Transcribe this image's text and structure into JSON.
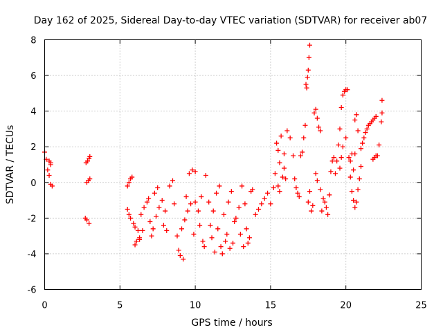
{
  "chart_data": {
    "type": "scatter",
    "title": "Day 162 of 2025, Sidereal Day-to-day VTEC variation (SDTVAR) for receiver ab07",
    "xlabel": "GPS time / hours",
    "ylabel": "SDTVAR / TECUs",
    "xlim": [
      0,
      25
    ],
    "ylim": [
      -6,
      8
    ],
    "xticks": [
      0,
      5,
      10,
      15,
      20,
      25
    ],
    "yticks": [
      -6,
      -4,
      -2,
      0,
      2,
      4,
      6,
      8
    ],
    "xtick_labels": [
      "0",
      "5",
      "10",
      "15",
      "20",
      "25"
    ],
    "ytick_labels": [
      "-6",
      "-4",
      "-2",
      "0",
      "2",
      "4",
      "6",
      "8"
    ],
    "grid": true,
    "marker": "plus",
    "color": "#ff0000",
    "series": [
      {
        "x": [
          0.0,
          0.1,
          0.2,
          0.3,
          0.4,
          0.3,
          0.4,
          0.5,
          0.4
        ],
        "y": [
          1.7,
          1.3,
          0.7,
          1.2,
          1.1,
          0.4,
          -0.1,
          -0.2,
          1.0
        ]
      },
      {
        "x": [
          2.75,
          2.85,
          2.95,
          3.0,
          2.8,
          2.9,
          3.0,
          2.7,
          2.8,
          2.95
        ],
        "y": [
          1.1,
          1.2,
          1.35,
          1.45,
          0.0,
          0.1,
          0.2,
          -2.0,
          -2.1,
          -2.3
        ]
      },
      {
        "x": [
          5.5,
          5.6,
          5.7,
          5.8,
          5.5,
          5.6,
          5.7,
          5.9,
          6.0,
          6.2,
          6.3,
          6.0,
          6.1,
          6.3,
          6.5,
          6.4,
          6.6,
          6.8,
          6.9,
          7.0,
          7.2,
          7.1,
          7.3,
          7.5,
          7.4,
          7.6,
          7.8,
          8.0,
          7.9,
          8.1,
          8.3,
          8.5,
          8.6,
          8.8,
          8.9,
          9.0,
          9.2,
          9.1,
          9.3,
          9.5,
          9.4,
          9.6,
          9.8,
          10.0,
          9.7,
          9.9
        ],
        "y": [
          -0.2,
          0.0,
          0.2,
          0.3,
          -1.5,
          -1.8,
          -2.0,
          -2.3,
          -2.5,
          -2.7,
          -3.2,
          -3.5,
          -3.3,
          -3.1,
          -2.7,
          -1.8,
          -1.4,
          -1.1,
          -0.9,
          -2.2,
          -2.6,
          -3.0,
          -0.6,
          -0.3,
          -1.9,
          -1.4,
          -1.0,
          -1.6,
          -2.4,
          -2.7,
          -0.2,
          0.1,
          -1.2,
          -3.0,
          -3.8,
          -4.1,
          -4.3,
          -2.6,
          -2.1,
          -1.6,
          -0.8,
          0.5,
          0.7,
          0.6,
          -1.2,
          -2.9
        ]
      },
      {
        "x": [
          10.0,
          10.2,
          10.3,
          10.5,
          10.6,
          10.4,
          10.7,
          10.9,
          11.0,
          11.1,
          11.3,
          11.2,
          11.4,
          11.6,
          11.5,
          11.7,
          11.8,
          12.0,
          11.9,
          12.1,
          12.3,
          12.2,
          12.4,
          12.6,
          12.5,
          12.7,
          12.9,
          13.0,
          13.2,
          13.1,
          13.3,
          13.5,
          13.6,
          13.4,
          13.8,
          13.7,
          14.0,
          14.2,
          14.4,
          14.6,
          14.8
        ],
        "y": [
          -1.1,
          -1.6,
          -2.4,
          -3.3,
          -3.6,
          -0.8,
          0.4,
          -1.1,
          -2.4,
          -3.1,
          -3.9,
          -1.6,
          -0.6,
          -0.2,
          -2.6,
          -3.6,
          -4.0,
          -3.3,
          -1.8,
          -2.9,
          -3.7,
          -1.1,
          -0.5,
          -2.2,
          -3.4,
          -2.0,
          -1.4,
          -2.9,
          -3.6,
          -0.2,
          -1.2,
          -3.4,
          -3.1,
          -2.6,
          -0.4,
          -0.5,
          -1.8,
          -1.5,
          -1.2,
          -0.9,
          -0.6
        ]
      },
      {
        "x": [
          15.0,
          15.2,
          15.3,
          15.5,
          15.4,
          15.6,
          15.8,
          15.7,
          15.9,
          16.0,
          15.5,
          15.6,
          15.9,
          16.1,
          16.3,
          16.5,
          16.6,
          16.7,
          16.8,
          16.9,
          17.0,
          17.1,
          17.2,
          17.3,
          17.4,
          17.35,
          17.45,
          17.5,
          17.55,
          17.6,
          17.5,
          17.7,
          17.8,
          17.6,
          17.9,
          18.0,
          18.1,
          18.2,
          18.3,
          18.0,
          18.1,
          18.3,
          18.5,
          18.7,
          18.8,
          18.4,
          18.6,
          18.9,
          19.0,
          19.1,
          19.2
        ],
        "y": [
          -1.2,
          -0.3,
          0.5,
          1.8,
          2.2,
          1.1,
          0.3,
          2.6,
          1.6,
          0.2,
          -0.2,
          -0.5,
          0.8,
          2.9,
          2.5,
          1.5,
          0.2,
          -0.3,
          -0.6,
          -0.8,
          1.5,
          1.7,
          2.5,
          3.2,
          5.3,
          5.5,
          5.9,
          6.3,
          7.0,
          7.7,
          -1.1,
          -1.6,
          -1.3,
          -0.5,
          3.9,
          4.1,
          3.6,
          3.1,
          2.9,
          0.5,
          0.1,
          -0.4,
          -0.9,
          -1.4,
          -1.8,
          -1.6,
          -1.1,
          -0.7,
          0.6,
          1.2,
          1.4
        ]
      },
      {
        "x": [
          19.3,
          19.4,
          19.5,
          19.6,
          19.7,
          19.8,
          19.9,
          20.0,
          19.6,
          19.7,
          19.8,
          20.0,
          20.1,
          20.2,
          20.3,
          20.4,
          20.5,
          20.3,
          20.4,
          20.6,
          20.7,
          20.8,
          20.9,
          21.0,
          20.6,
          20.7,
          20.8,
          20.5,
          20.6,
          21.0,
          21.1,
          21.2,
          21.3,
          21.4,
          21.5,
          21.6,
          21.7,
          21.8,
          21.9,
          22.0,
          21.8,
          21.9,
          22.0,
          22.1,
          22.2,
          22.35,
          22.4,
          22.4
        ],
        "y": [
          0.5,
          1.2,
          2.1,
          3.0,
          4.2,
          4.9,
          5.1,
          5.2,
          0.8,
          1.4,
          2.0,
          2.5,
          5.2,
          1.4,
          0.3,
          -0.5,
          -1.0,
          1.2,
          1.6,
          -1.4,
          -1.1,
          -0.4,
          0.2,
          0.9,
          3.5,
          3.8,
          2.9,
          0.7,
          1.6,
          1.9,
          2.2,
          2.5,
          2.8,
          3.0,
          3.2,
          3.3,
          3.4,
          3.5,
          3.6,
          3.7,
          1.3,
          1.4,
          1.5,
          1.5,
          2.1,
          3.4,
          3.9,
          4.6
        ]
      }
    ]
  }
}
